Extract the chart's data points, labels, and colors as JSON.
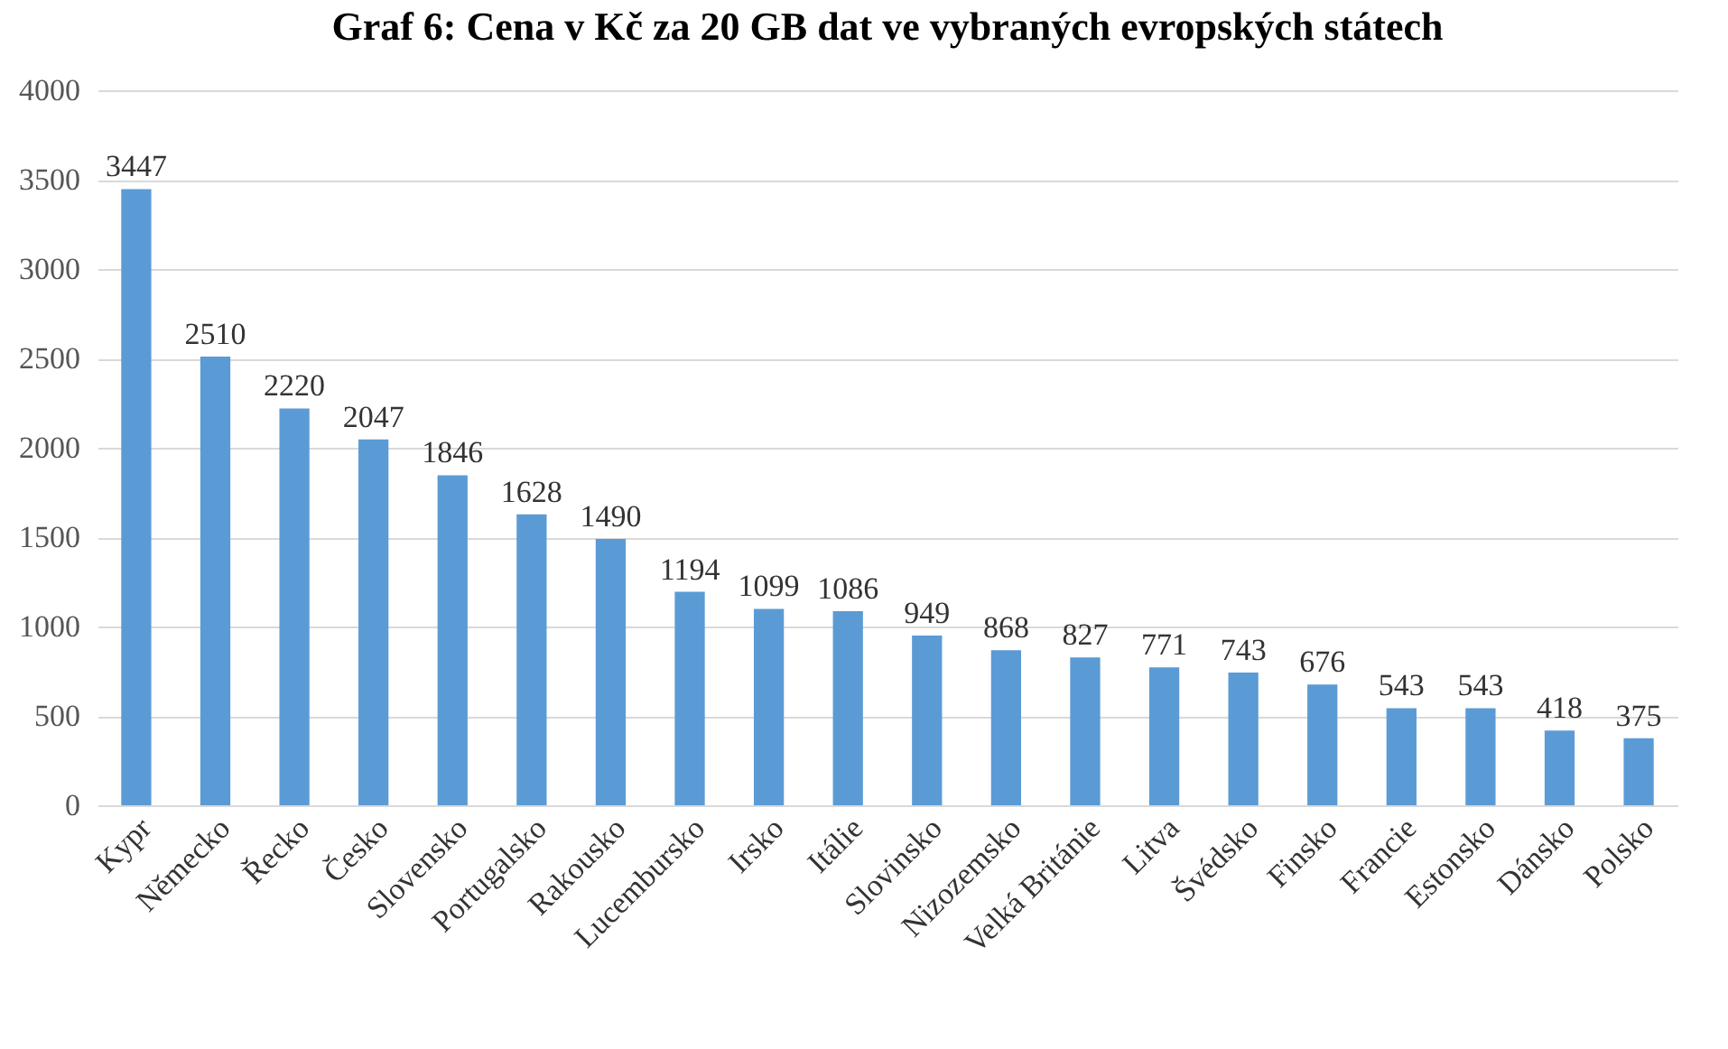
{
  "chart_data": {
    "type": "bar",
    "title": "Graf 6: Cena v Kč za 20 GB dat ve vybraných evropských státech",
    "categories": [
      "Kypr",
      "Německo",
      "Řecko",
      "Česko",
      "Slovensko",
      "Portugalsko",
      "Rakousko",
      "Lucembursko",
      "Irsko",
      "Itálie",
      "Slovinsko",
      "Nizozemsko",
      "Velká Británie",
      "Litva",
      "Švédsko",
      "Finsko",
      "Francie",
      "Estonsko",
      "Dánsko",
      "Polsko"
    ],
    "values": [
      3447,
      2510,
      2220,
      2047,
      1846,
      1628,
      1490,
      1194,
      1099,
      1086,
      949,
      868,
      827,
      771,
      743,
      676,
      543,
      543,
      418,
      375
    ],
    "color": "#5b9bd5",
    "ylim": [
      0,
      4000
    ],
    "yticks": [
      0,
      500,
      1000,
      1500,
      2000,
      2500,
      3000,
      3500,
      4000
    ],
    "grid": "y",
    "data_labels": true
  }
}
